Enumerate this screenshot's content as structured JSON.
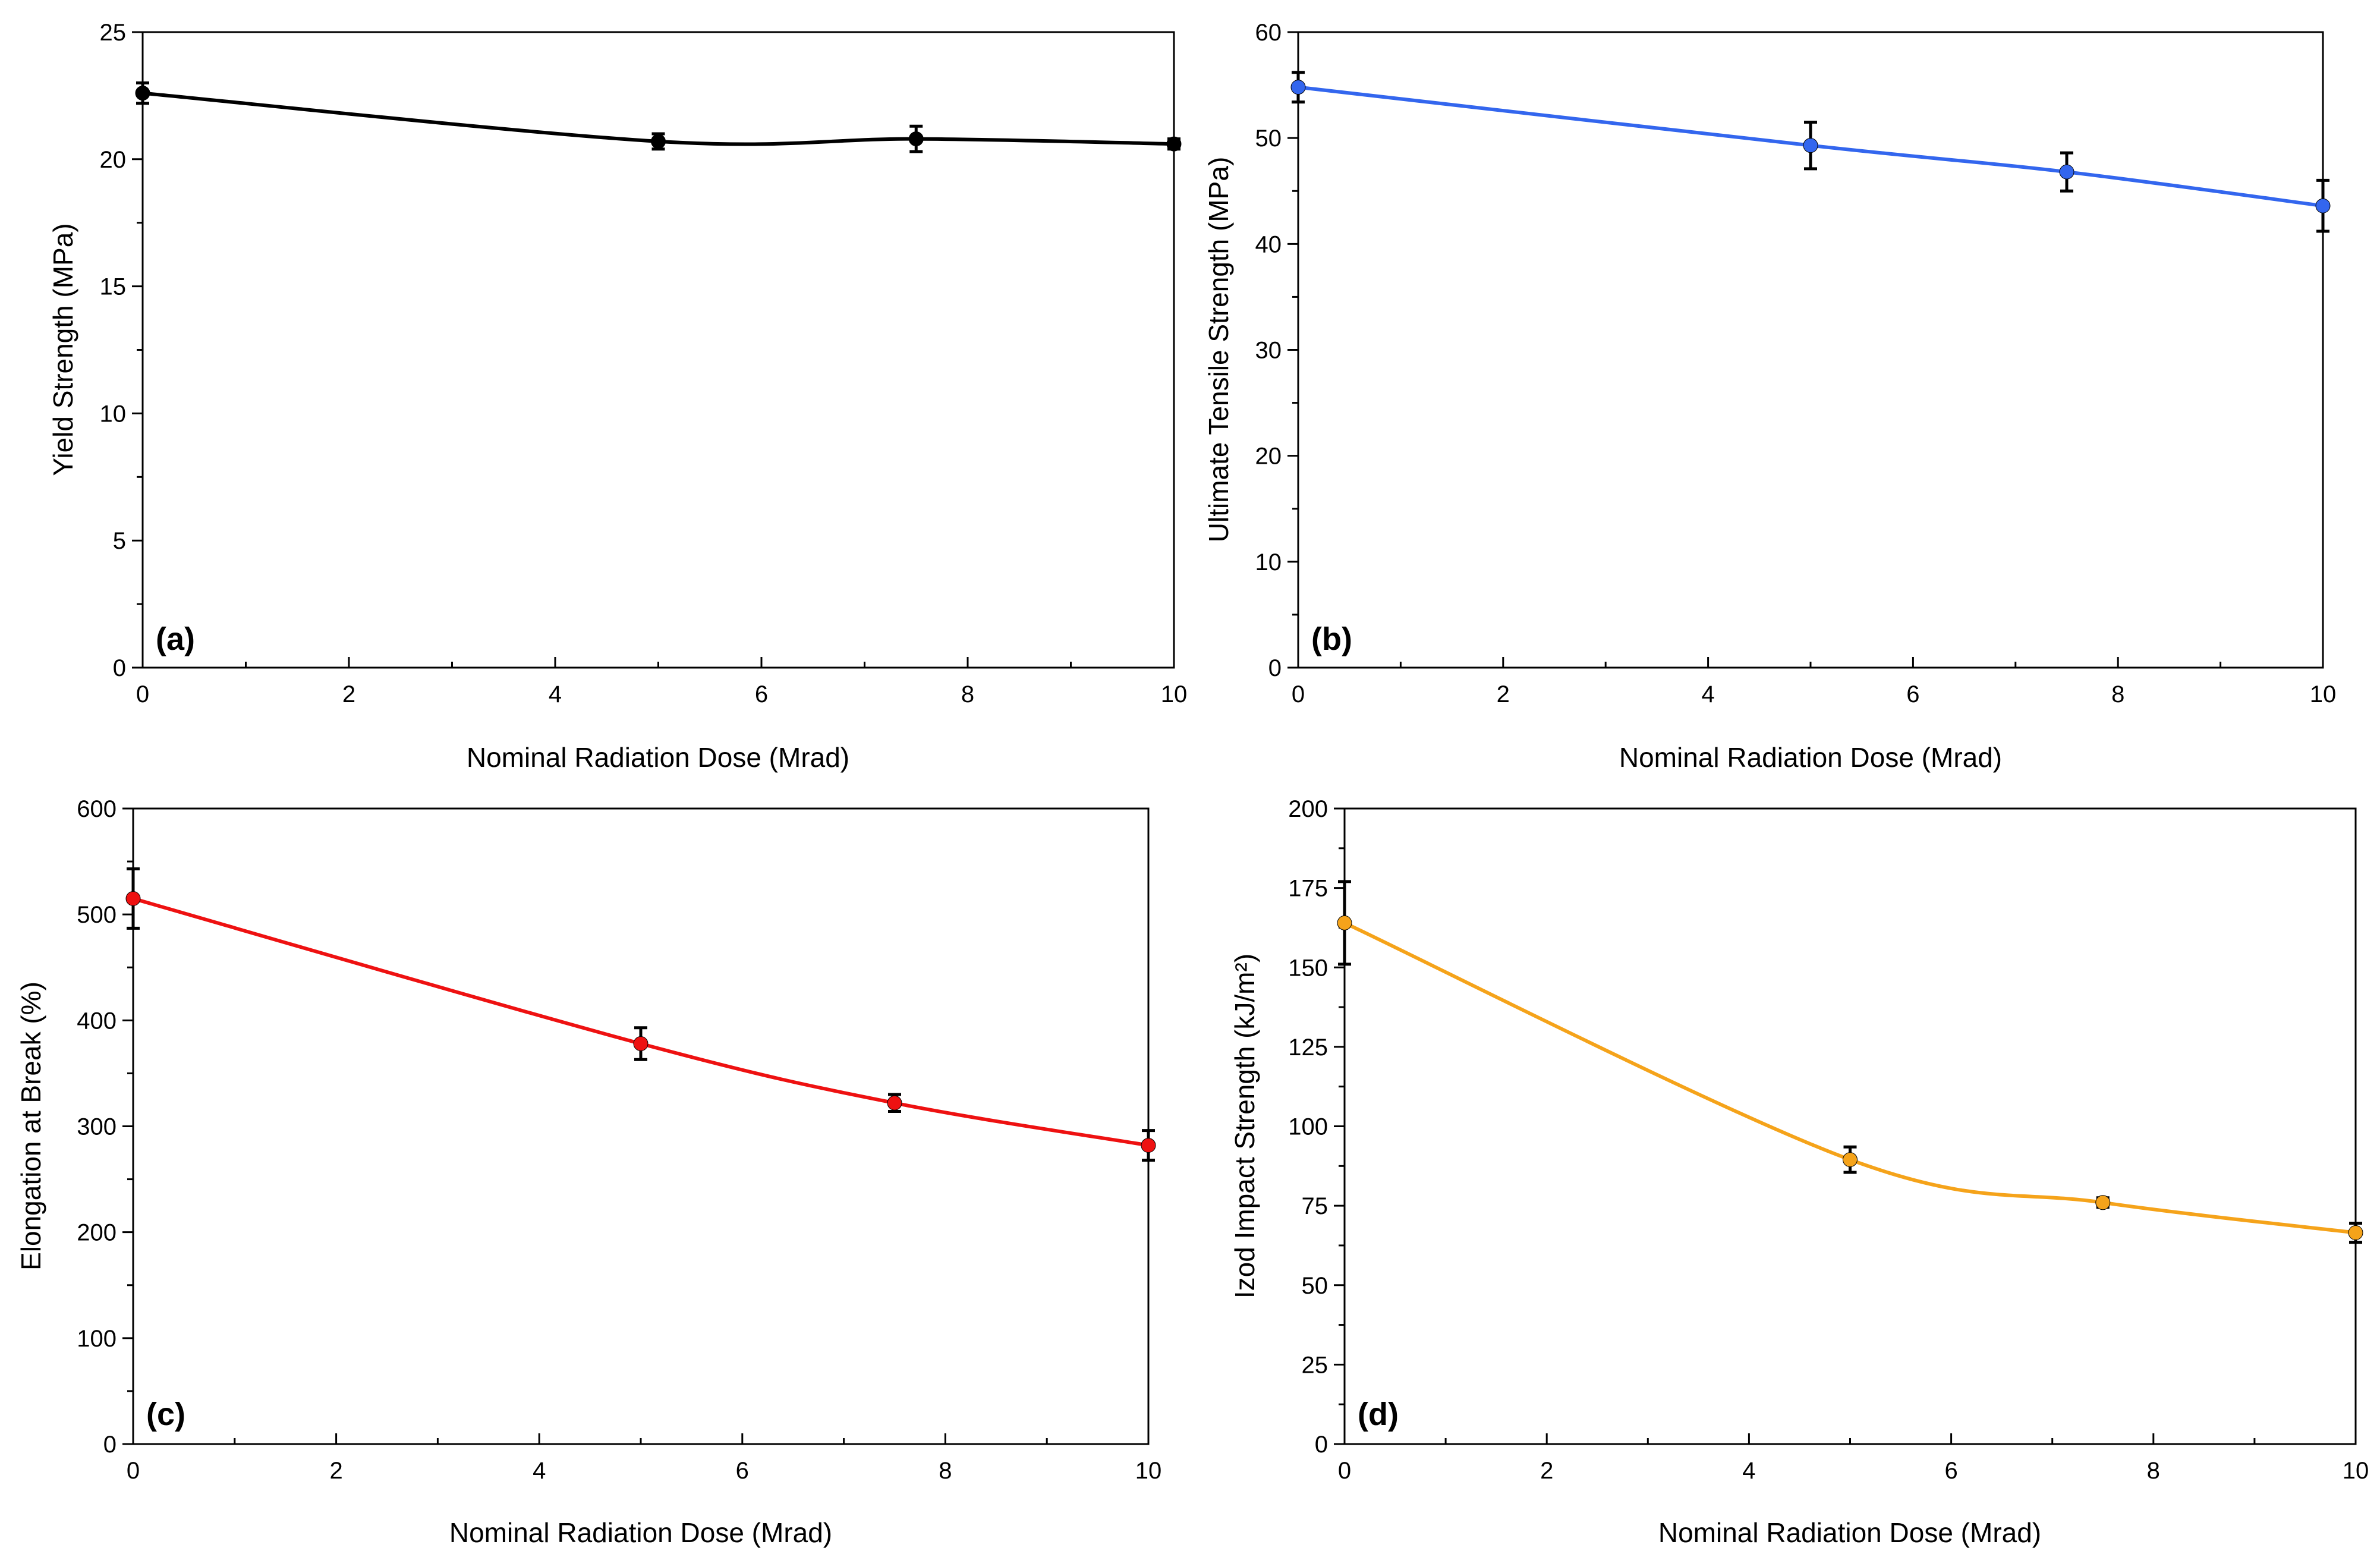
{
  "chart_data": [
    {
      "type": "line",
      "panel_label": "(a)",
      "xlabel": "Nominal Radiation Dose (Mrad)",
      "ylabel": "Yield Strength (MPa)",
      "xlim": [
        0,
        10
      ],
      "ylim": [
        0,
        25
      ],
      "xticks": [
        0,
        2,
        4,
        6,
        8,
        10
      ],
      "yticks": [
        0,
        5,
        10,
        15,
        20,
        25
      ],
      "color": "#000000",
      "series": [
        {
          "x": [
            0,
            5,
            7.5,
            10
          ],
          "y": [
            22.6,
            20.7,
            20.8,
            20.6
          ],
          "error": [
            0.4,
            0.3,
            0.5,
            0.2
          ]
        }
      ]
    },
    {
      "type": "line",
      "panel_label": "(b)",
      "xlabel": "Nominal Radiation Dose (Mrad)",
      "ylabel": "Ultimate Tensile Strength (MPa)",
      "xlim": [
        0,
        10
      ],
      "ylim": [
        0,
        60
      ],
      "xticks": [
        0,
        2,
        4,
        6,
        8,
        10
      ],
      "yticks": [
        0,
        10,
        20,
        30,
        40,
        50,
        60
      ],
      "color": "#3366ee",
      "series": [
        {
          "x": [
            0,
            5,
            7.5,
            10
          ],
          "y": [
            54.8,
            49.3,
            46.8,
            43.6
          ],
          "error": [
            1.4,
            2.2,
            1.8,
            2.4
          ]
        }
      ]
    },
    {
      "type": "line",
      "panel_label": "(c)",
      "xlabel": "Nominal Radiation Dose (Mrad)",
      "ylabel": "Elongation at Break (%)",
      "xlim": [
        0,
        10
      ],
      "ylim": [
        0,
        600
      ],
      "xticks": [
        0,
        2,
        4,
        6,
        8,
        10
      ],
      "yticks": [
        0,
        100,
        200,
        300,
        400,
        500,
        600
      ],
      "color": "#ee1111",
      "series": [
        {
          "x": [
            0,
            5,
            7.5,
            10
          ],
          "y": [
            515,
            378,
            322,
            282
          ],
          "error": [
            28,
            15,
            8,
            14
          ]
        }
      ]
    },
    {
      "type": "line",
      "panel_label": "(d)",
      "xlabel": "Nominal Radiation Dose (Mrad)",
      "ylabel": "Izod Impact Strength (kJ/m²)",
      "xlim": [
        0,
        10
      ],
      "ylim": [
        0,
        200
      ],
      "xticks": [
        0,
        2,
        4,
        6,
        8,
        10
      ],
      "yticks": [
        0,
        25,
        50,
        75,
        100,
        125,
        150,
        175,
        200
      ],
      "color": "#f5a31a",
      "series": [
        {
          "x": [
            0,
            5,
            7.5,
            10
          ],
          "y": [
            164,
            89.5,
            76,
            66.5
          ],
          "error": [
            13,
            4,
            1.5,
            3
          ]
        }
      ]
    }
  ]
}
